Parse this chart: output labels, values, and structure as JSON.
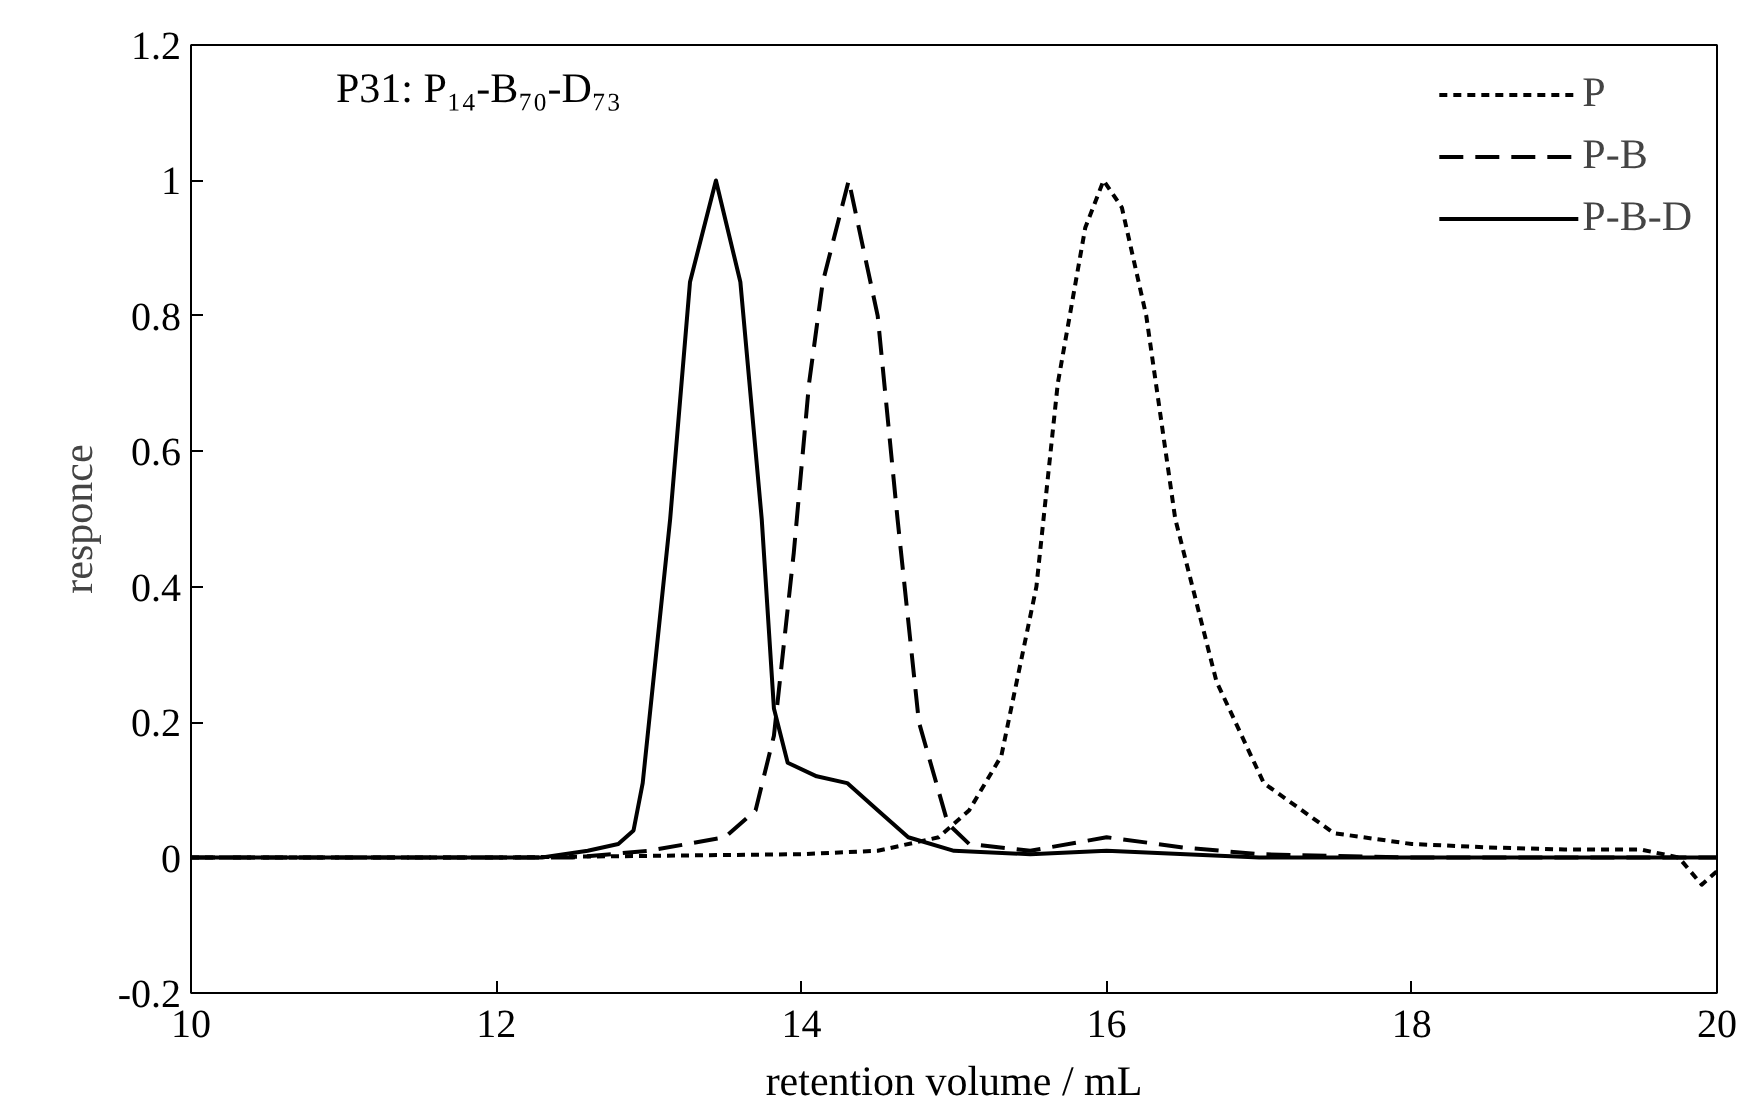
{
  "chart_data": {
    "type": "line",
    "xlabel": "retention volume / mL",
    "ylabel": "responce",
    "annotations": [
      "P31: P₁₄-B₇₀-D₇₃"
    ],
    "xlim": [
      10,
      20
    ],
    "xticks": [
      10,
      12,
      14,
      16,
      18,
      20
    ],
    "ylim": [
      -0.2,
      1.2
    ],
    "yticks": [
      -0.2,
      0,
      0.2,
      0.4,
      0.6,
      0.8,
      1,
      1.2
    ],
    "grid": false,
    "legend": "top right",
    "marker": "none",
    "series": [
      {
        "name": "P",
        "color": "#000000",
        "line_style": "dotted",
        "x": [
          10,
          12,
          14,
          14.5,
          14.9,
          15.1,
          15.31,
          15.54,
          15.68,
          15.86,
          15.98,
          16.1,
          16.26,
          16.45,
          16.72,
          17.03,
          17.49,
          18,
          18.5,
          19,
          19.5,
          19.75,
          19.9,
          20
        ],
        "values": [
          0,
          0,
          0.005,
          0.01,
          0.03,
          0.07,
          0.15,
          0.4,
          0.7,
          0.93,
          1.0,
          0.96,
          0.8,
          0.5,
          0.26,
          0.11,
          0.036,
          0.02,
          0.015,
          0.012,
          0.012,
          0.0,
          -0.04,
          -0.02
        ]
      },
      {
        "name": "P-B",
        "color": "#000000",
        "line_style": "dashed",
        "x": [
          10,
          12.5,
          13.0,
          13.5,
          13.7,
          13.82,
          13.95,
          14.05,
          14.14,
          14.31,
          14.5,
          14.63,
          14.77,
          14.96,
          15.1,
          15.5,
          16.0,
          16.5,
          17,
          18,
          20
        ],
        "values": [
          0,
          0,
          0.01,
          0.03,
          0.07,
          0.18,
          0.45,
          0.7,
          0.85,
          1.0,
          0.8,
          0.5,
          0.2,
          0.05,
          0.02,
          0.01,
          0.03,
          0.015,
          0.005,
          0,
          0
        ]
      },
      {
        "name": "P-B-D",
        "color": "#000000",
        "line_style": "solid",
        "x": [
          10,
          12.3,
          12.6,
          12.8,
          12.9,
          12.96,
          13.14,
          13.27,
          13.44,
          13.6,
          13.74,
          13.82,
          13.91,
          14.1,
          14.3,
          14.5,
          14.7,
          15.0,
          15.5,
          16,
          17,
          20
        ],
        "values": [
          0,
          0,
          0.01,
          0.02,
          0.04,
          0.11,
          0.5,
          0.85,
          1.0,
          0.85,
          0.5,
          0.22,
          0.14,
          0.12,
          0.11,
          0.07,
          0.03,
          0.01,
          0.005,
          0.01,
          0,
          0
        ]
      }
    ]
  }
}
